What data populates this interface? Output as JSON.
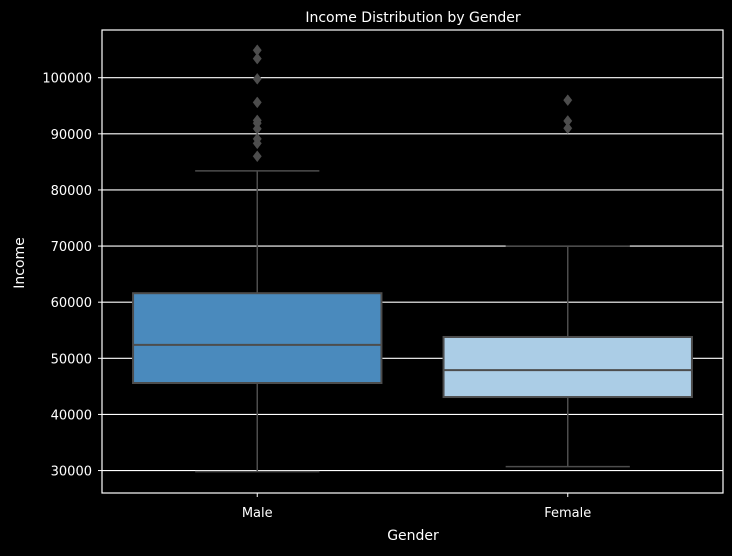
{
  "chart_data": {
    "type": "box",
    "title": "Income Distribution by Gender",
    "xlabel": "Gender",
    "ylabel": "Income",
    "ylim": [
      26000,
      108500
    ],
    "yticks": [
      30000,
      40000,
      50000,
      60000,
      70000,
      80000,
      90000,
      100000
    ],
    "grid": true,
    "categories": [
      "Male",
      "Female"
    ],
    "boxes": [
      {
        "category": "Male",
        "color": "#4a8abd",
        "whisker_low": 29800,
        "q1": 45600,
        "median": 52400,
        "q3": 61600,
        "whisker_high": 83400,
        "outliers": [
          86000,
          88300,
          89100,
          90900,
          91900,
          92400,
          95600,
          99800,
          103400,
          104900
        ]
      },
      {
        "category": "Female",
        "color": "#abcde6",
        "whisker_low": 30700,
        "q1": 43100,
        "median": 47900,
        "q3": 53800,
        "whisker_high": 70000,
        "outliers": [
          91000,
          92300,
          96000
        ]
      }
    ]
  },
  "colors": {
    "background": "#000000",
    "grid": "#ffffff",
    "lines": "#4d4d4d",
    "text": "#ffffff"
  }
}
